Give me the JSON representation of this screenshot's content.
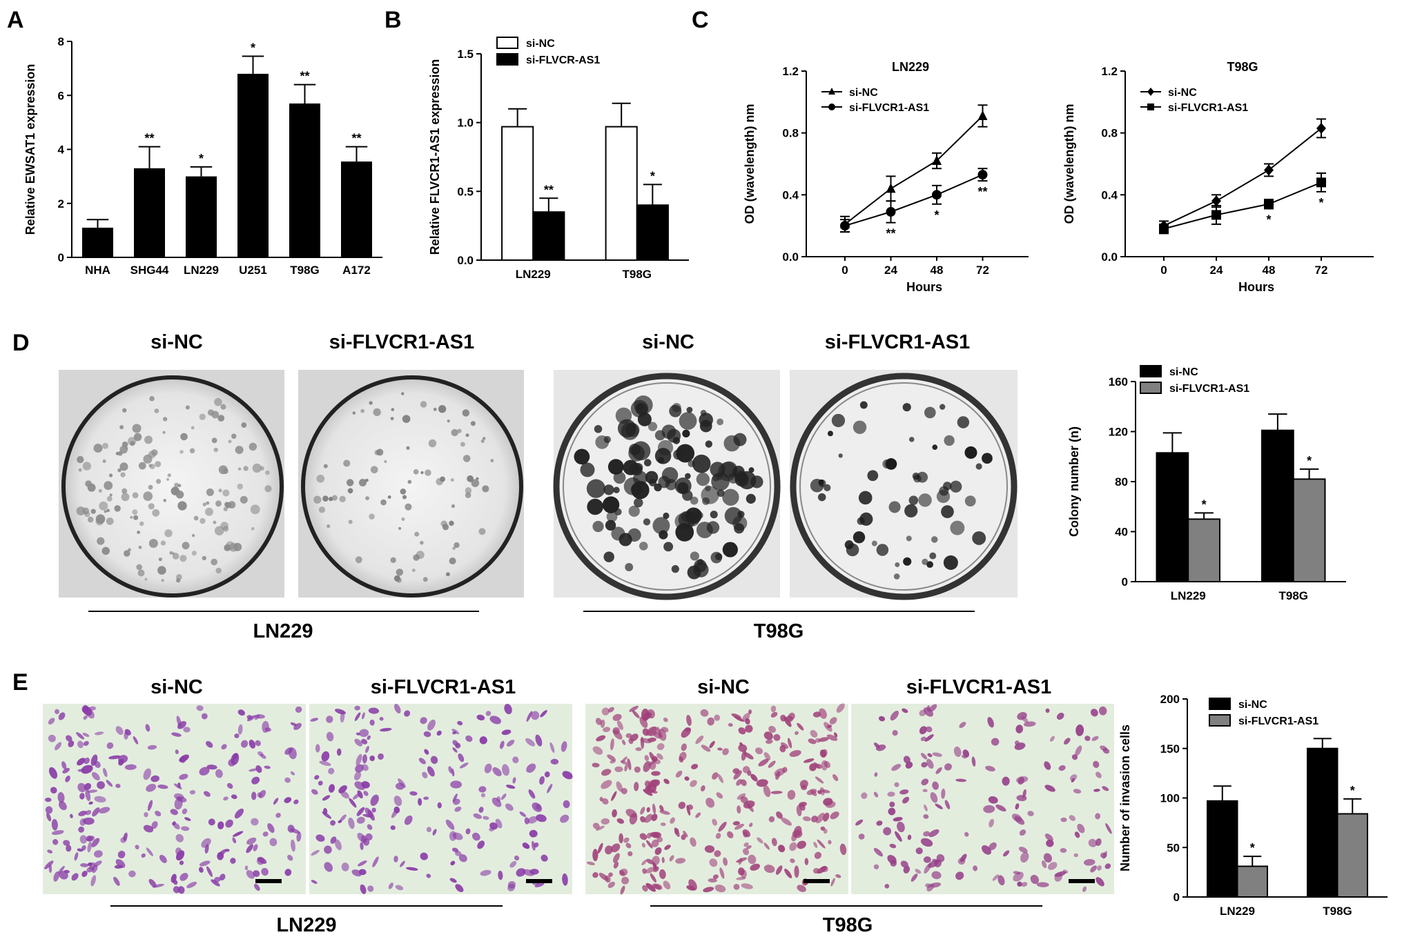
{
  "colors": {
    "bar_black": "#000000",
    "bar_white": "#ffffff",
    "bar_gray": "#808080",
    "dish_bg": "#e8e8e8",
    "invasion_bg": "#dcebd8",
    "invasion_cell": "#8a3ca8"
  },
  "panels": {
    "A": {
      "letter": "A"
    },
    "B": {
      "letter": "B"
    },
    "C": {
      "letter": "C"
    },
    "D": {
      "letter": "D",
      "col_labels": [
        "si-NC",
        "si-FLVCR1-AS1",
        "si-NC",
        "si-FLVCR1-AS1"
      ],
      "cell_lines": [
        "LN229",
        "T98G"
      ]
    },
    "E": {
      "letter": "E",
      "col_labels": [
        "si-NC",
        "si-FLVCR1-AS1",
        "si-NC",
        "si-FLVCR1-AS1"
      ],
      "cell_lines": [
        "LN229",
        "T98G"
      ]
    }
  },
  "chart_data": [
    {
      "id": "A",
      "type": "bar",
      "categories": [
        "NHA",
        "SHG44",
        "LN229",
        "U251",
        "T98G",
        "A172"
      ],
      "values": [
        1.1,
        3.3,
        3.0,
        6.8,
        5.7,
        3.55
      ],
      "errors": [
        0.3,
        0.8,
        0.35,
        0.65,
        0.7,
        0.55
      ],
      "significance": [
        "",
        "**",
        "*",
        "*",
        "**",
        "**"
      ],
      "ylabel": "Relative EWSAT1 expression",
      "ylim": [
        0,
        8
      ],
      "yticks": [
        "0",
        "2",
        "4",
        "6",
        "8"
      ]
    },
    {
      "id": "B",
      "type": "bar",
      "categories": [
        "LN229",
        "T98G"
      ],
      "series": [
        {
          "name": "si-NC",
          "values": [
            0.97,
            0.97
          ],
          "errors": [
            0.13,
            0.17
          ],
          "significance": [
            "",
            ""
          ]
        },
        {
          "name": "si-FLVCR-AS1",
          "values": [
            0.35,
            0.4
          ],
          "errors": [
            0.1,
            0.15
          ],
          "significance": [
            "**",
            "*"
          ]
        }
      ],
      "ylabel": "Relative FLVCR1-AS1 expression",
      "ylim": [
        0,
        1.5
      ],
      "yticks": [
        "0.0",
        "0.5",
        "1.0",
        "1.5"
      ],
      "legend": "top-left"
    },
    {
      "id": "C1",
      "type": "line",
      "title": "LN229",
      "x": [
        0,
        24,
        48,
        72
      ],
      "xticks": [
        "0",
        "24",
        "48",
        "72"
      ],
      "series": [
        {
          "name": "si-NC",
          "values": [
            0.21,
            0.44,
            0.62,
            0.91
          ],
          "errors": [
            0.05,
            0.08,
            0.05,
            0.07
          ],
          "significance": [
            "",
            "",
            "",
            ""
          ]
        },
        {
          "name": "si-FLVCR1-AS1",
          "values": [
            0.2,
            0.29,
            0.4,
            0.53
          ],
          "errors": [
            0.04,
            0.07,
            0.06,
            0.04
          ],
          "significance": [
            "",
            "**",
            "*",
            "**"
          ]
        }
      ],
      "xlabel": "Hours",
      "ylabel": "OD (wavelength) nm",
      "ylim": [
        0,
        1.2
      ],
      "yticks": [
        "0.0",
        "0.4",
        "0.8",
        "1.2"
      ],
      "legend": "top-left"
    },
    {
      "id": "C2",
      "type": "line",
      "title": "T98G",
      "x": [
        0,
        24,
        48,
        72
      ],
      "xticks": [
        "0",
        "24",
        "48",
        "72"
      ],
      "series": [
        {
          "name": "si-NC",
          "values": [
            0.2,
            0.36,
            0.56,
            0.83
          ],
          "errors": [
            0.03,
            0.04,
            0.04,
            0.06
          ],
          "significance": [
            "",
            "",
            "",
            ""
          ]
        },
        {
          "name": "si-FLVCR1-AS1",
          "values": [
            0.18,
            0.27,
            0.34,
            0.48
          ],
          "errors": [
            0.03,
            0.06,
            0.03,
            0.06
          ],
          "significance": [
            "",
            "",
            "*",
            "*"
          ]
        }
      ],
      "xlabel": "Hours",
      "ylabel": "OD (wavelength) nm",
      "ylim": [
        0,
        1.2
      ],
      "yticks": [
        "0.0",
        "0.4",
        "0.8",
        "1.2"
      ],
      "legend": "top-left"
    },
    {
      "id": "D",
      "type": "bar",
      "categories": [
        "LN229",
        "T98G"
      ],
      "series": [
        {
          "name": "si-NC",
          "values": [
            103,
            121
          ],
          "errors": [
            16,
            13
          ],
          "significance": [
            "",
            ""
          ]
        },
        {
          "name": "si-FLVCR1-AS1",
          "values": [
            50,
            82
          ],
          "errors": [
            5,
            8
          ],
          "significance": [
            "*",
            "*"
          ]
        }
      ],
      "ylabel": "Colony number (n)",
      "ylim": [
        0,
        160
      ],
      "yticks": [
        "0",
        "40",
        "80",
        "120",
        "160"
      ],
      "legend": "top"
    },
    {
      "id": "E",
      "type": "bar",
      "categories": [
        "LN229",
        "T98G"
      ],
      "series": [
        {
          "name": "si-NC",
          "values": [
            97,
            150
          ],
          "errors": [
            15,
            10
          ],
          "significance": [
            "",
            ""
          ]
        },
        {
          "name": "si-FLVCR1-AS1",
          "values": [
            31,
            84
          ],
          "errors": [
            10,
            15
          ],
          "significance": [
            "*",
            "*"
          ]
        }
      ],
      "ylabel": "Number of invasion cells",
      "ylim": [
        0,
        200
      ],
      "yticks": [
        "0",
        "50",
        "100",
        "150",
        "200"
      ],
      "legend": "top"
    }
  ]
}
